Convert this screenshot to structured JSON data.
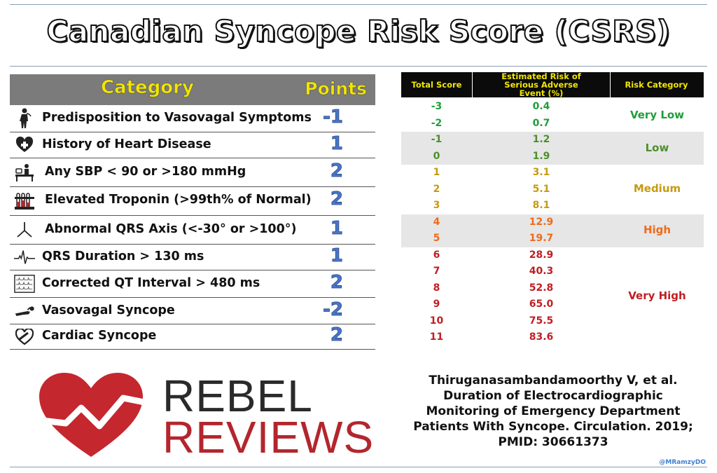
{
  "title": "Canadian Syncope Risk Score (CSRS)",
  "left_table": {
    "headers": {
      "category": "Category",
      "points": "Points"
    },
    "rows": [
      {
        "icon": "person-icon",
        "label": "Predisposition to Vasovagal Symptoms",
        "points": "-1"
      },
      {
        "icon": "heart-plus-icon",
        "label": "History of Heart Disease",
        "points": "1"
      },
      {
        "icon": "blood-pressure-icon",
        "label": "Any SBP < 90 or >180 mmHg",
        "points": "2"
      },
      {
        "icon": "test-tubes-icon",
        "label": "Elevated Troponin (>99th% of Normal)",
        "points": "2"
      },
      {
        "icon": "axis-icon",
        "label": "Abnormal QRS Axis (<-30° or >100°)",
        "points": "1"
      },
      {
        "icon": "ecg-wave-icon",
        "label": "QRS Duration > 130 ms",
        "points": "1"
      },
      {
        "icon": "ecg-strip-icon",
        "label": "Corrected QT Interval > 480 ms",
        "points": "2"
      },
      {
        "icon": "fainting-person-icon",
        "label": "Vasovagal Syncope",
        "points": "-2"
      },
      {
        "icon": "heart-band-icon",
        "label": "Cardiac Syncope",
        "points": "2"
      }
    ]
  },
  "right_table": {
    "headers": {
      "total_score": "Total Score",
      "risk": "Estimated Risk of Serious Adverse Event (%)",
      "category": "Risk Category"
    },
    "rows": [
      {
        "score": "-3",
        "risk": "0.4"
      },
      {
        "score": "-2",
        "risk": "0.7"
      },
      {
        "score": "-1",
        "risk": "1.2"
      },
      {
        "score": "0",
        "risk": "1.9"
      },
      {
        "score": "1",
        "risk": "3.1"
      },
      {
        "score": "2",
        "risk": "5.1"
      },
      {
        "score": "3",
        "risk": "8.1"
      },
      {
        "score": "4",
        "risk": "12.9"
      },
      {
        "score": "5",
        "risk": "19.7"
      },
      {
        "score": "6",
        "risk": "28.9"
      },
      {
        "score": "7",
        "risk": "40.3"
      },
      {
        "score": "8",
        "risk": "52.8"
      },
      {
        "score": "9",
        "risk": "65.0"
      },
      {
        "score": "10",
        "risk": "75.5"
      },
      {
        "score": "11",
        "risk": "83.6"
      }
    ],
    "categories": [
      {
        "label": "Very Low",
        "color": "#1f9e3a"
      },
      {
        "label": "Low",
        "color": "#4c8f2b"
      },
      {
        "label": "Medium",
        "color": "#c79a12"
      },
      {
        "label": "High",
        "color": "#ef6a1a"
      },
      {
        "label": "Very High",
        "color": "#c01e24"
      }
    ]
  },
  "logo": {
    "line1": "REBEL",
    "line2": "REVIEWS"
  },
  "citation": {
    "line1": "Thiruganasambandamoorthy V, et al.",
    "line2": "Duration of Electrocardiographic",
    "line3": "Monitoring of Emergency Department",
    "line4": "Patients With Syncope. Circulation. 2019;",
    "line5": "PMID: 30661373"
  },
  "handle": "@MRamzyDO",
  "colors": {
    "header_gray": "#7b7b7b",
    "header_yellow": "#f2e600",
    "points_blue": "#4a76c8",
    "band_gray": "#e6e6e6",
    "logo_red": "#b3262d"
  }
}
